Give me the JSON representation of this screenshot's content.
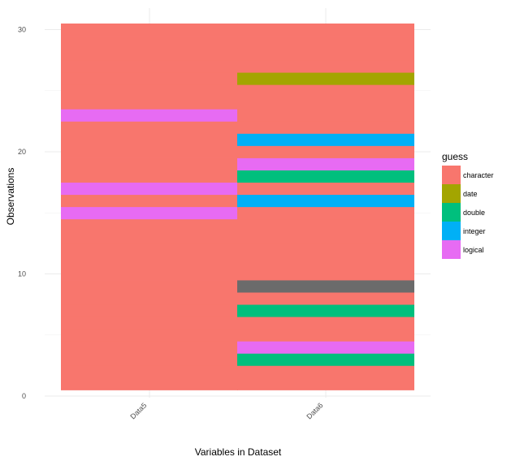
{
  "chart_data": {
    "type": "heatmap",
    "xlabel": "Variables in Dataset",
    "ylabel": "Observations",
    "x_categories": [
      "Data5",
      "Data6"
    ],
    "y_ticks": [
      0,
      10,
      20,
      30
    ],
    "ylim": [
      0,
      30
    ],
    "grid": true,
    "legend": {
      "title": "guess",
      "position": "right",
      "entries": [
        {
          "label": "character",
          "color": "#F8766D"
        },
        {
          "label": "date",
          "color": "#A3A500"
        },
        {
          "label": "double",
          "color": "#00BF7D"
        },
        {
          "label": "integer",
          "color": "#00B0F6"
        },
        {
          "label": "logical",
          "color": "#E76BF3"
        }
      ]
    },
    "na_color": "#6B6B6B",
    "observations": 30,
    "columns": [
      {
        "name": "Data5",
        "cells": [
          "character",
          "character",
          "character",
          "character",
          "character",
          "character",
          "character",
          "character",
          "character",
          "character",
          "character",
          "character",
          "character",
          "character",
          "logical",
          "character",
          "logical",
          "character",
          "character",
          "character",
          "character",
          "character",
          "logical",
          "character",
          "character",
          "character",
          "character",
          "character",
          "character",
          "character"
        ]
      },
      {
        "name": "Data6",
        "cells": [
          "character",
          "character",
          "double",
          "logical",
          "character",
          "character",
          "double",
          "character",
          "NA",
          "character",
          "character",
          "character",
          "character",
          "character",
          "character",
          "integer",
          "character",
          "double",
          "logical",
          "character",
          "integer",
          "character",
          "character",
          "character",
          "character",
          "date",
          "character",
          "character",
          "character",
          "character"
        ]
      }
    ]
  }
}
